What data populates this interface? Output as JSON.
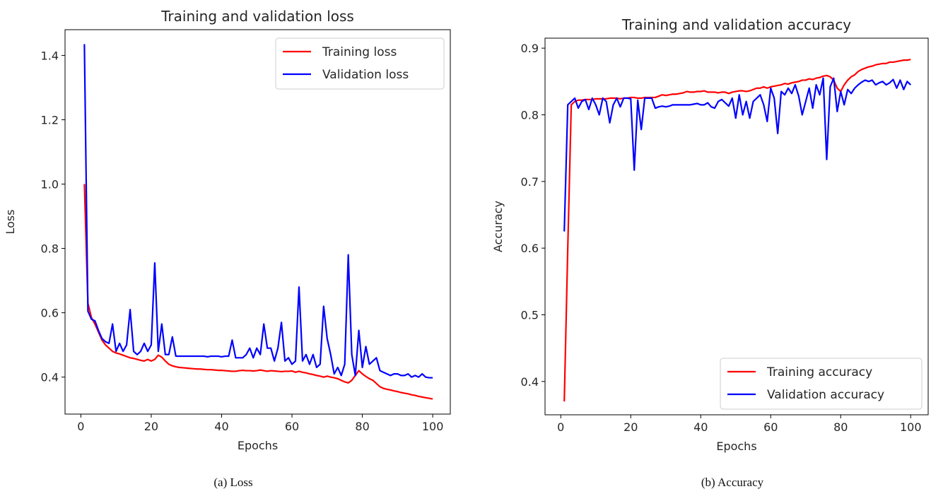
{
  "captions": {
    "loss": "(a) Loss",
    "accuracy": "(b) Accuracy"
  },
  "chart_data": [
    {
      "type": "line",
      "title": "Training and validation loss",
      "xlabel": "Epochs",
      "ylabel": "Loss",
      "xlim": [
        -4.5,
        105
      ],
      "ylim": [
        0.285,
        1.48
      ],
      "xticks": [
        0,
        20,
        40,
        60,
        80,
        100
      ],
      "yticks": [
        0.4,
        0.6,
        0.8,
        1.0,
        1.2,
        1.4
      ],
      "ytick_labels": [
        "0.4",
        "0.6",
        "0.8",
        "1.0",
        "1.2",
        "1.4"
      ],
      "grid": false,
      "legend": "top-right",
      "x": [
        1,
        2,
        3,
        4,
        5,
        6,
        7,
        8,
        9,
        10,
        11,
        12,
        13,
        14,
        15,
        16,
        17,
        18,
        19,
        20,
        21,
        22,
        23,
        24,
        25,
        26,
        27,
        28,
        29,
        30,
        31,
        32,
        33,
        34,
        35,
        36,
        37,
        38,
        39,
        40,
        41,
        42,
        43,
        44,
        45,
        46,
        47,
        48,
        49,
        50,
        51,
        52,
        53,
        54,
        55,
        56,
        57,
        58,
        59,
        60,
        61,
        62,
        63,
        64,
        65,
        66,
        67,
        68,
        69,
        70,
        71,
        72,
        73,
        74,
        75,
        76,
        77,
        78,
        79,
        80,
        81,
        82,
        83,
        84,
        85,
        86,
        87,
        88,
        89,
        90,
        91,
        92,
        93,
        94,
        95,
        96,
        97,
        98,
        99,
        100
      ],
      "series": [
        {
          "name": "Training loss",
          "color": "#ff0000",
          "values": [
            1.0,
            0.63,
            0.585,
            0.565,
            0.54,
            0.515,
            0.5,
            0.49,
            0.48,
            0.475,
            0.472,
            0.468,
            0.464,
            0.46,
            0.458,
            0.455,
            0.452,
            0.45,
            0.455,
            0.45,
            0.455,
            0.468,
            0.462,
            0.45,
            0.44,
            0.435,
            0.432,
            0.43,
            0.429,
            0.428,
            0.427,
            0.426,
            0.425,
            0.425,
            0.424,
            0.423,
            0.423,
            0.422,
            0.421,
            0.421,
            0.42,
            0.419,
            0.418,
            0.418,
            0.42,
            0.421,
            0.42,
            0.42,
            0.419,
            0.42,
            0.422,
            0.42,
            0.418,
            0.42,
            0.419,
            0.418,
            0.417,
            0.418,
            0.418,
            0.419,
            0.415,
            0.418,
            0.415,
            0.413,
            0.41,
            0.408,
            0.405,
            0.403,
            0.4,
            0.403,
            0.4,
            0.398,
            0.395,
            0.39,
            0.385,
            0.382,
            0.39,
            0.405,
            0.42,
            0.41,
            0.402,
            0.395,
            0.39,
            0.38,
            0.37,
            0.365,
            0.362,
            0.36,
            0.357,
            0.355,
            0.352,
            0.35,
            0.348,
            0.345,
            0.343,
            0.34,
            0.338,
            0.336,
            0.334,
            0.332
          ]
        },
        {
          "name": "Validation loss",
          "color": "#0000ff",
          "values": [
            1.435,
            0.605,
            0.58,
            0.575,
            0.545,
            0.52,
            0.51,
            0.505,
            0.565,
            0.48,
            0.505,
            0.48,
            0.5,
            0.61,
            0.48,
            0.47,
            0.48,
            0.505,
            0.48,
            0.5,
            0.755,
            0.48,
            0.565,
            0.47,
            0.47,
            0.525,
            0.465,
            0.465,
            0.465,
            0.465,
            0.465,
            0.465,
            0.465,
            0.465,
            0.465,
            0.463,
            0.465,
            0.465,
            0.465,
            0.463,
            0.465,
            0.465,
            0.515,
            0.46,
            0.46,
            0.46,
            0.47,
            0.49,
            0.46,
            0.49,
            0.47,
            0.565,
            0.49,
            0.49,
            0.45,
            0.49,
            0.57,
            0.45,
            0.46,
            0.44,
            0.45,
            0.68,
            0.45,
            0.47,
            0.44,
            0.47,
            0.43,
            0.44,
            0.62,
            0.52,
            0.47,
            0.41,
            0.43,
            0.405,
            0.44,
            0.78,
            0.47,
            0.405,
            0.545,
            0.43,
            0.495,
            0.44,
            0.45,
            0.46,
            0.42,
            0.415,
            0.41,
            0.405,
            0.41,
            0.41,
            0.405,
            0.405,
            0.41,
            0.4,
            0.405,
            0.4,
            0.41,
            0.4,
            0.398,
            0.398
          ]
        }
      ]
    },
    {
      "type": "line",
      "title": "Training and validation accuracy",
      "xlabel": "Epochs",
      "ylabel": "Accuracy",
      "xlim": [
        -4.5,
        105
      ],
      "ylim": [
        0.35,
        0.915
      ],
      "xticks": [
        0,
        20,
        40,
        60,
        80,
        100
      ],
      "yticks": [
        0.4,
        0.5,
        0.6,
        0.7,
        0.8,
        0.9
      ],
      "ytick_labels": [
        "0.4",
        "0.5",
        "0.6",
        "0.7",
        "0.8",
        "0.9"
      ],
      "grid": false,
      "legend": "bottom-right",
      "x": [
        1,
        2,
        3,
        4,
        5,
        6,
        7,
        8,
        9,
        10,
        11,
        12,
        13,
        14,
        15,
        16,
        17,
        18,
        19,
        20,
        21,
        22,
        23,
        24,
        25,
        26,
        27,
        28,
        29,
        30,
        31,
        32,
        33,
        34,
        35,
        36,
        37,
        38,
        39,
        40,
        41,
        42,
        43,
        44,
        45,
        46,
        47,
        48,
        49,
        50,
        51,
        52,
        53,
        54,
        55,
        56,
        57,
        58,
        59,
        60,
        61,
        62,
        63,
        64,
        65,
        66,
        67,
        68,
        69,
        70,
        71,
        72,
        73,
        74,
        75,
        76,
        77,
        78,
        79,
        80,
        81,
        82,
        83,
        84,
        85,
        86,
        87,
        88,
        89,
        90,
        91,
        92,
        93,
        94,
        95,
        96,
        97,
        98,
        99,
        100
      ],
      "series": [
        {
          "name": "Training accuracy",
          "color": "#ff0000",
          "values": [
            0.37,
            0.6,
            0.815,
            0.82,
            0.822,
            0.822,
            0.823,
            0.823,
            0.823,
            0.824,
            0.824,
            0.824,
            0.824,
            0.825,
            0.825,
            0.825,
            0.824,
            0.825,
            0.825,
            0.826,
            0.826,
            0.825,
            0.825,
            0.826,
            0.826,
            0.826,
            0.826,
            0.828,
            0.83,
            0.829,
            0.83,
            0.831,
            0.831,
            0.832,
            0.833,
            0.835,
            0.834,
            0.834,
            0.835,
            0.835,
            0.836,
            0.834,
            0.834,
            0.834,
            0.833,
            0.834,
            0.834,
            0.832,
            0.834,
            0.835,
            0.836,
            0.836,
            0.835,
            0.836,
            0.838,
            0.84,
            0.84,
            0.842,
            0.84,
            0.842,
            0.843,
            0.844,
            0.845,
            0.847,
            0.846,
            0.848,
            0.849,
            0.85,
            0.852,
            0.852,
            0.854,
            0.853,
            0.855,
            0.856,
            0.858,
            0.859,
            0.857,
            0.852,
            0.84,
            0.835,
            0.845,
            0.852,
            0.857,
            0.86,
            0.865,
            0.868,
            0.87,
            0.872,
            0.873,
            0.875,
            0.876,
            0.877,
            0.877,
            0.879,
            0.879,
            0.88,
            0.881,
            0.882,
            0.882,
            0.883
          ]
        },
        {
          "name": "Validation accuracy",
          "color": "#0000ff",
          "values": [
            0.625,
            0.815,
            0.82,
            0.825,
            0.81,
            0.82,
            0.823,
            0.808,
            0.825,
            0.815,
            0.8,
            0.825,
            0.82,
            0.788,
            0.815,
            0.825,
            0.812,
            0.825,
            0.825,
            0.824,
            0.717,
            0.822,
            0.778,
            0.825,
            0.825,
            0.825,
            0.81,
            0.812,
            0.813,
            0.812,
            0.813,
            0.815,
            0.815,
            0.815,
            0.815,
            0.815,
            0.815,
            0.816,
            0.817,
            0.815,
            0.815,
            0.818,
            0.812,
            0.81,
            0.82,
            0.823,
            0.818,
            0.813,
            0.825,
            0.795,
            0.83,
            0.8,
            0.82,
            0.795,
            0.82,
            0.825,
            0.83,
            0.815,
            0.79,
            0.84,
            0.825,
            0.772,
            0.835,
            0.83,
            0.84,
            0.832,
            0.845,
            0.828,
            0.8,
            0.82,
            0.84,
            0.81,
            0.845,
            0.83,
            0.855,
            0.733,
            0.842,
            0.855,
            0.805,
            0.835,
            0.815,
            0.838,
            0.832,
            0.84,
            0.845,
            0.849,
            0.852,
            0.85,
            0.852,
            0.845,
            0.848,
            0.85,
            0.845,
            0.848,
            0.853,
            0.84,
            0.852,
            0.838,
            0.85,
            0.845
          ]
        }
      ]
    }
  ]
}
